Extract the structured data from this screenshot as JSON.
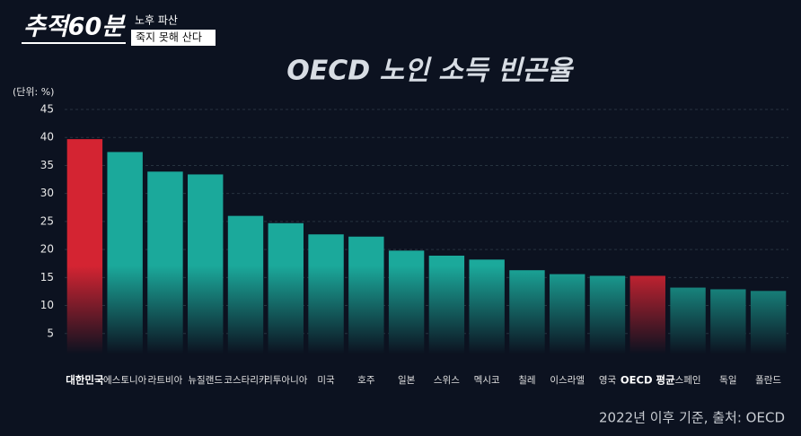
{
  "overlay": {
    "program": "추적60분",
    "episode_lines": [
      "노후 파산",
      "죽지 못해 산다"
    ]
  },
  "chart_data": {
    "type": "bar",
    "title": "OECD 노인 소득 빈곤율",
    "unit_label": "(단위: %)",
    "categories": [
      "대한민국",
      "에스토니아",
      "라트비아",
      "뉴질랜드",
      "코스타리카",
      "리투아니아",
      "미국",
      "호주",
      "일본",
      "스위스",
      "멕시코",
      "칠레",
      "이스라엘",
      "영국",
      "OECD 평균",
      "스페인",
      "독일",
      "폴란드"
    ],
    "values": [
      39.7,
      37.4,
      33.9,
      33.4,
      26.0,
      24.7,
      22.7,
      22.3,
      19.8,
      18.9,
      18.2,
      16.3,
      15.6,
      15.3,
      15.3,
      13.2,
      12.9,
      12.6
    ],
    "colors": [
      "#d42432",
      "#1ba99b",
      "#1ba99b",
      "#1ba99b",
      "#1ba99b",
      "#1ba99b",
      "#1ba99b",
      "#1ba99b",
      "#1ba99b",
      "#1ba99b",
      "#1ba99b",
      "#1ba99b",
      "#1ba99b",
      "#1ba99b",
      "#d42432",
      "#1ba99b",
      "#1ba99b",
      "#1ba99b"
    ],
    "highlight_color": "#d42432",
    "ylim": [
      0,
      45
    ],
    "yticks": [
      5,
      10,
      15,
      20,
      25,
      30,
      35,
      40,
      45
    ],
    "grid": true,
    "source": "2022년 이후 기준, 출처: OECD"
  }
}
